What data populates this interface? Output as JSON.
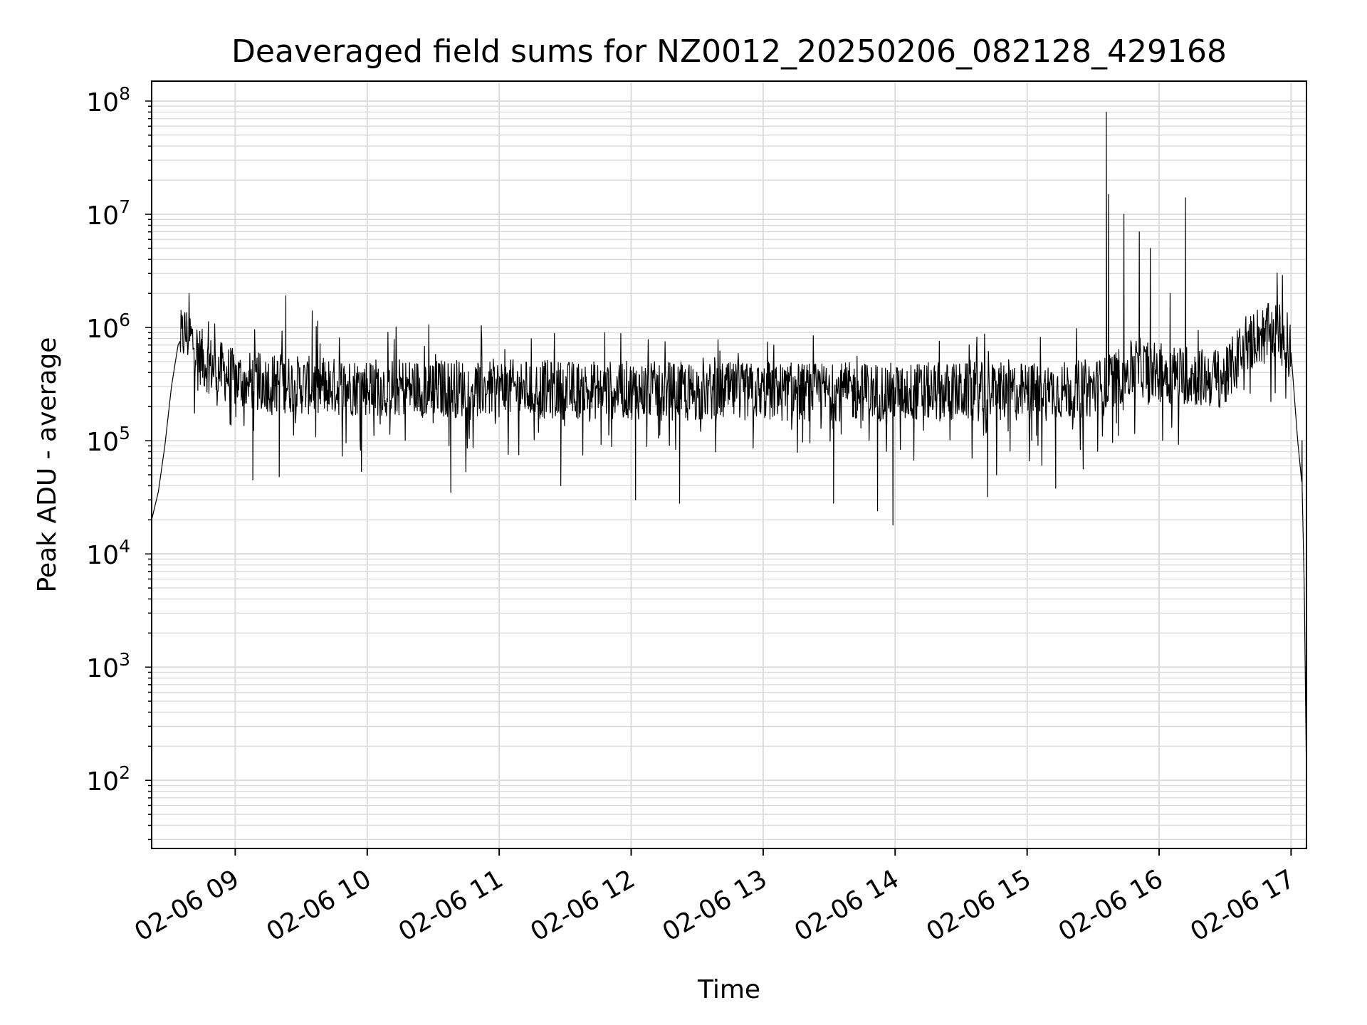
{
  "chart_data": {
    "type": "line",
    "title": "Deaveraged field sums for NZ0012_20250206_082128_429168",
    "xlabel": "Time",
    "ylabel": "Peak ADU - average",
    "yscale": "log",
    "ylim": [
      25,
      150000000
    ],
    "xlim": [
      "2025-02-06 08:22",
      "2025-02-06 17:07"
    ],
    "grid": true,
    "line_color": "#000000",
    "grid_color": "#dddddd",
    "x_ticks": [
      {
        "value": "2025-02-06 09:00",
        "label": "02-06 09"
      },
      {
        "value": "2025-02-06 10:00",
        "label": "02-06 10"
      },
      {
        "value": "2025-02-06 11:00",
        "label": "02-06 11"
      },
      {
        "value": "2025-02-06 12:00",
        "label": "02-06 12"
      },
      {
        "value": "2025-02-06 13:00",
        "label": "02-06 13"
      },
      {
        "value": "2025-02-06 14:00",
        "label": "02-06 14"
      },
      {
        "value": "2025-02-06 15:00",
        "label": "02-06 15"
      },
      {
        "value": "2025-02-06 16:00",
        "label": "02-06 16"
      },
      {
        "value": "2025-02-06 17:00",
        "label": "02-06 17"
      }
    ],
    "y_ticks": [
      {
        "value": 100,
        "base": "10",
        "exp": "2"
      },
      {
        "value": 1000,
        "base": "10",
        "exp": "3"
      },
      {
        "value": 10000,
        "base": "10",
        "exp": "4"
      },
      {
        "value": 100000,
        "base": "10",
        "exp": "5"
      },
      {
        "value": 1000000,
        "base": "10",
        "exp": "6"
      },
      {
        "value": 10000000,
        "base": "10",
        "exp": "7"
      },
      {
        "value": 100000000,
        "base": "10",
        "exp": "8"
      }
    ],
    "series": [
      {
        "x": [
          "2025-02-06 08:22",
          "2025-02-06 08:25",
          "2025-02-06 08:28",
          "2025-02-06 08:31",
          "2025-02-06 08:34",
          "2025-02-06 08:37",
          "2025-02-06 08:40",
          "2025-02-06 08:43",
          "2025-02-06 08:46",
          "2025-02-06 08:50",
          "2025-02-06 08:55",
          "2025-02-06 09:00",
          "2025-02-06 09:10",
          "2025-02-06 09:20",
          "2025-02-06 09:30",
          "2025-02-06 09:40",
          "2025-02-06 09:50",
          "2025-02-06 10:00",
          "2025-02-06 10:30",
          "2025-02-06 11:00",
          "2025-02-06 11:30",
          "2025-02-06 12:00",
          "2025-02-06 12:30",
          "2025-02-06 13:00",
          "2025-02-06 13:30",
          "2025-02-06 14:00",
          "2025-02-06 14:30",
          "2025-02-06 15:00",
          "2025-02-06 15:20",
          "2025-02-06 15:35",
          "2025-02-06 15:40",
          "2025-02-06 15:45",
          "2025-02-06 15:50",
          "2025-02-06 16:00",
          "2025-02-06 16:10",
          "2025-02-06 16:20",
          "2025-02-06 16:30",
          "2025-02-06 16:40",
          "2025-02-06 16:45",
          "2025-02-06 16:50",
          "2025-02-06 16:55",
          "2025-02-06 17:00",
          "2025-02-06 17:03",
          "2025-02-06 17:05",
          "2025-02-06 17:06",
          "2025-02-06 17:07"
        ],
        "values": [
          20000,
          35000,
          90000,
          300000,
          700000,
          900000,
          800000,
          600000,
          500000,
          450000,
          400000,
          350000,
          330000,
          320000,
          310000,
          300000,
          300000,
          300000,
          290000,
          290000,
          280000,
          280000,
          270000,
          270000,
          270000,
          270000,
          270000,
          270000,
          280000,
          300000,
          350000,
          400000,
          450000,
          400000,
          380000,
          360000,
          350000,
          800000,
          850000,
          900000,
          900000,
          600000,
          100000,
          40000,
          5000,
          100
        ],
        "spikes": [
          {
            "x": "2025-02-06 08:39",
            "value": 2000000
          },
          {
            "x": "2025-02-06 09:23",
            "value": 1900000
          },
          {
            "x": "2025-02-06 09:35",
            "value": 1400000
          },
          {
            "x": "2025-02-06 11:48",
            "value": 900000
          },
          {
            "x": "2025-02-06 15:36",
            "value": 80000000
          },
          {
            "x": "2025-02-06 15:37",
            "value": 15000000
          },
          {
            "x": "2025-02-06 15:44",
            "value": 10000000
          },
          {
            "x": "2025-02-06 15:51",
            "value": 7000000
          },
          {
            "x": "2025-02-06 15:56",
            "value": 5000000
          },
          {
            "x": "2025-02-06 16:05",
            "value": 2000000
          },
          {
            "x": "2025-02-06 16:12",
            "value": 14000000
          },
          {
            "x": "2025-02-06 17:05",
            "value": 100000
          }
        ],
        "dips": [
          {
            "x": "2025-02-06 09:08",
            "value": 45000
          },
          {
            "x": "2025-02-06 09:20",
            "value": 48000
          },
          {
            "x": "2025-02-06 10:38",
            "value": 35000
          },
          {
            "x": "2025-02-06 11:28",
            "value": 40000
          },
          {
            "x": "2025-02-06 12:02",
            "value": 30000
          },
          {
            "x": "2025-02-06 12:22",
            "value": 28000
          },
          {
            "x": "2025-02-06 13:32",
            "value": 28000
          },
          {
            "x": "2025-02-06 13:52",
            "value": 24000
          },
          {
            "x": "2025-02-06 13:59",
            "value": 18000
          },
          {
            "x": "2025-02-06 14:42",
            "value": 32000
          },
          {
            "x": "2025-02-06 15:13",
            "value": 38000
          }
        ]
      }
    ]
  }
}
